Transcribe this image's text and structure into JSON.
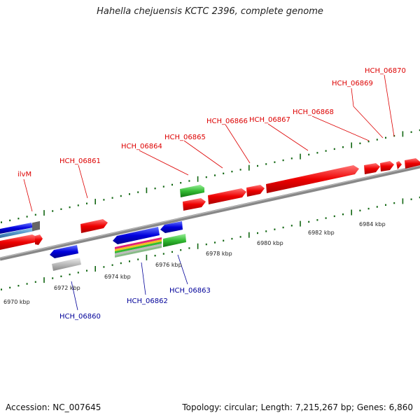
{
  "title": "Hahella chejuensis KCTC 2396, complete genome",
  "footer": {
    "accession": "Accession: NC_007645",
    "summary": "Topology: circular; Length: 7,215,267 bp; Genes: 6,860"
  },
  "colors": {
    "forward_label": "#dd0000",
    "reverse_label": "#000099",
    "forward_gene": "#ee0000",
    "reverse_gene": "#0000dd",
    "rna_gene": "#33bb33",
    "pseudo_gene": "#aaaaaa",
    "tick": "#116611",
    "backbone": "#777777"
  },
  "forward_labels": [
    "ilvM",
    "HCH_06861",
    "HCH_06864",
    "HCH_06865",
    "HCH_06866",
    "HCH_06867",
    "HCH_06868",
    "HCH_06869",
    "HCH_06870"
  ],
  "reverse_labels": [
    "HCH_06860",
    "HCH_06862",
    "HCH_06863"
  ],
  "scale_labels": [
    "6970 kbp",
    "6972 kbp",
    "6974 kbp",
    "6976 kbp",
    "6978 kbp",
    "6980 kbp",
    "6982 kbp",
    "6984 kbp"
  ]
}
